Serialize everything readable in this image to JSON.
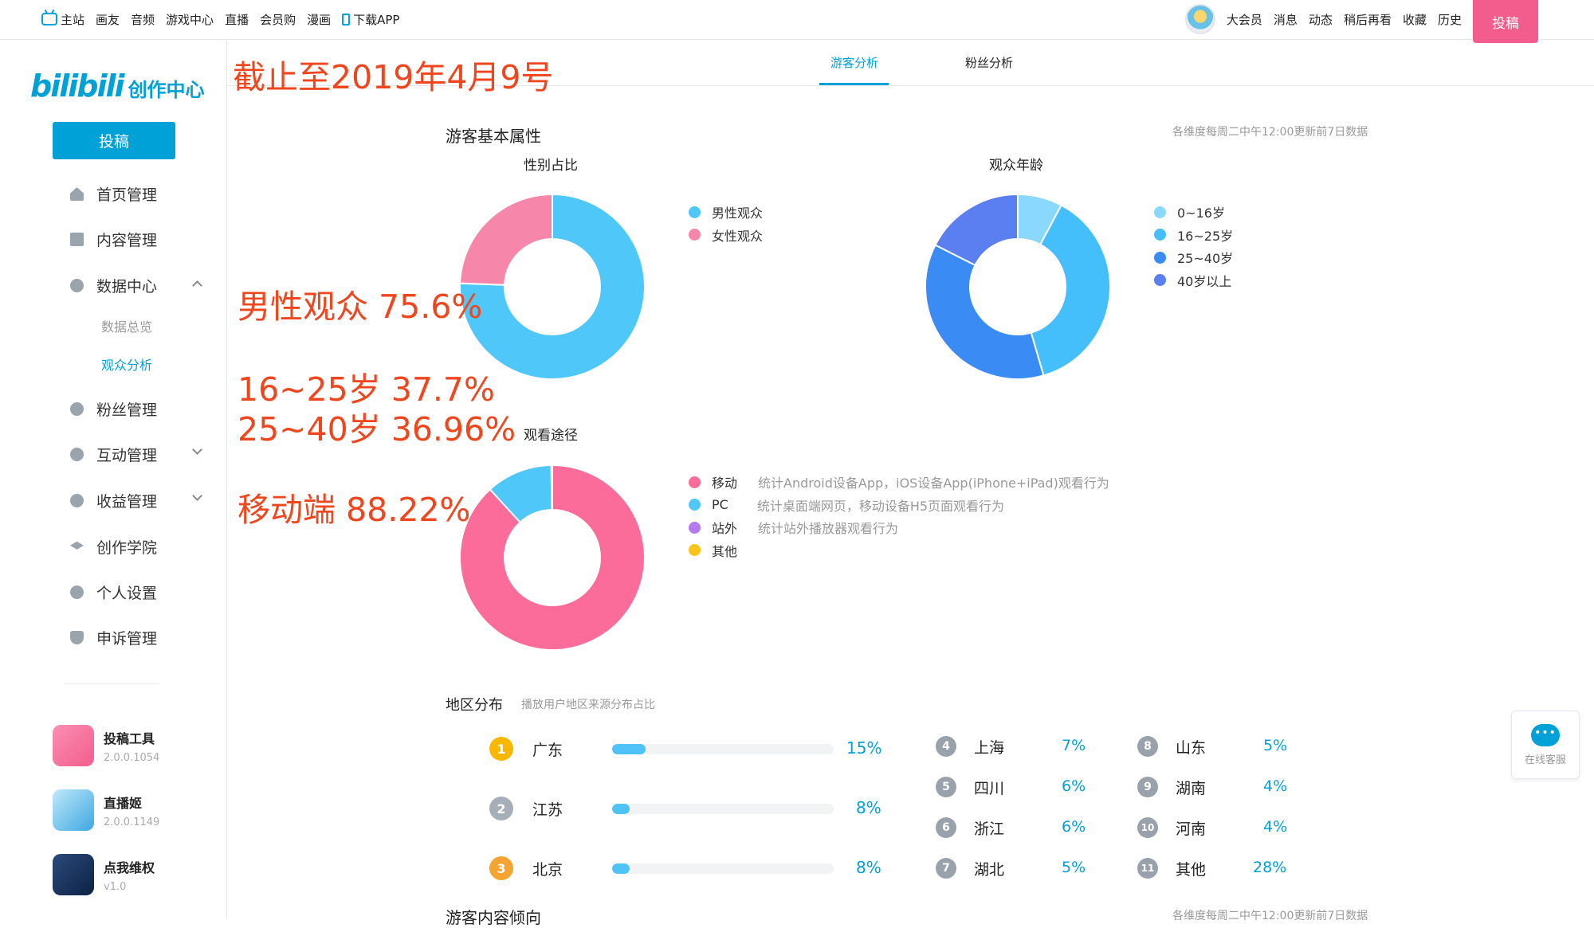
{
  "topbar": {
    "nav": [
      "主站",
      "画友",
      "音频",
      "游戏中心",
      "直播",
      "会员购",
      "漫画",
      "下载APP"
    ],
    "right": [
      "大会员",
      "消息",
      "动态",
      "稍后再看",
      "收藏",
      "历史"
    ],
    "upload_label": "投稿"
  },
  "sidebar": {
    "logo_text": "bilibili",
    "logo_suffix": "创作中心",
    "upload_label": "投稿",
    "menu": [
      "首页管理",
      "内容管理",
      "数据中心",
      "粉丝管理",
      "互动管理",
      "收益管理",
      "创作学院",
      "个人设置",
      "申诉管理"
    ],
    "submenu": [
      "数据总览",
      "观众分析"
    ],
    "tools": [
      {
        "name": "投稿工具",
        "version": "2.0.0.1054"
      },
      {
        "name": "直播姬",
        "version": "2.0.0.1149"
      },
      {
        "name": "点我维权",
        "version": "v1.0"
      }
    ]
  },
  "tabs": [
    "游客分析",
    "粉丝分析"
  ],
  "basic": {
    "title": "游客基本属性",
    "note": "各维度每周二中午12:00更新前7日数据"
  },
  "gender_chart": {
    "title": "性别占比",
    "legend": [
      {
        "label": "男性观众",
        "color": "#4fc7f9"
      },
      {
        "label": "女性观众",
        "color": "#f787aa"
      }
    ]
  },
  "age_chart": {
    "title": "观众年龄",
    "legend": [
      {
        "label": "0~16岁",
        "color": "#8ad8fd"
      },
      {
        "label": "16~25岁",
        "color": "#45befc"
      },
      {
        "label": "25~40岁",
        "color": "#3b8bf5"
      },
      {
        "label": "40岁以上",
        "color": "#5b7ff0"
      }
    ]
  },
  "channel_chart": {
    "title": "观看途径",
    "legend": [
      {
        "label": "移动",
        "desc": "统计Android设备App，iOS设备App(iPhone+iPad)观看行为",
        "color": "#fb6c9a"
      },
      {
        "label": "PC",
        "desc": "统计桌面端网页，移动设备H5页面观看行为",
        "color": "#4fc7f9"
      },
      {
        "label": "站外",
        "desc": "统计站外播放器观看行为",
        "color": "#b57af2"
      },
      {
        "label": "其他",
        "desc": "",
        "color": "#fcc419"
      }
    ]
  },
  "chart_data": [
    {
      "type": "pie",
      "title": "性别占比",
      "categories": [
        "男性观众",
        "女性观众"
      ],
      "values": [
        75.6,
        24.4
      ],
      "colors": [
        "#4fc7f9",
        "#f787aa"
      ]
    },
    {
      "type": "pie",
      "title": "观众年龄",
      "categories": [
        "0~16岁",
        "16~25岁",
        "25~40岁",
        "40岁以上"
      ],
      "values": [
        7.8,
        37.7,
        36.96,
        17.54
      ],
      "colors": [
        "#8ad8fd",
        "#45befc",
        "#3b8bf5",
        "#5b7ff0"
      ]
    },
    {
      "type": "pie",
      "title": "观看途径",
      "categories": [
        "移动",
        "PC",
        "站外",
        "其他"
      ],
      "values": [
        88.22,
        11.6,
        0.1,
        0.08
      ],
      "colors": [
        "#fb6c9a",
        "#4fc7f9",
        "#b57af2",
        "#fcc419"
      ]
    }
  ],
  "overlay": {
    "date": "截止至2019年4月9号",
    "male": "男性观众 75.6%",
    "age1": "16~25岁 37.7%",
    "age2": "25~40岁 36.96%",
    "mobile": "移动端 88.22%"
  },
  "region": {
    "title": "地区分布",
    "subtitle": "播放用户地区来源分布占比",
    "top": [
      {
        "rank": "1",
        "name": "广东",
        "pct": "15%",
        "value": 15,
        "color": "#f8b700"
      },
      {
        "rank": "2",
        "name": "江苏",
        "pct": "8%",
        "value": 8,
        "color": "#a6afb8"
      },
      {
        "rank": "3",
        "name": "北京",
        "pct": "8%",
        "value": 8,
        "color": "#f4a431"
      }
    ],
    "col2": [
      {
        "rank": "4",
        "name": "上海",
        "pct": "7%"
      },
      {
        "rank": "5",
        "name": "四川",
        "pct": "6%"
      },
      {
        "rank": "6",
        "name": "浙江",
        "pct": "6%"
      },
      {
        "rank": "7",
        "name": "湖北",
        "pct": "5%"
      }
    ],
    "col3": [
      {
        "rank": "8",
        "name": "山东",
        "pct": "5%"
      },
      {
        "rank": "9",
        "name": "湖南",
        "pct": "4%"
      },
      {
        "rank": "10",
        "name": "河南",
        "pct": "4%"
      },
      {
        "rank": "11",
        "name": "其他",
        "pct": "28%"
      }
    ]
  },
  "next_section": {
    "title": "游客内容倾向",
    "note": "各维度每周二中午12:00更新前7日数据"
  },
  "service": {
    "label": "在线客服"
  }
}
